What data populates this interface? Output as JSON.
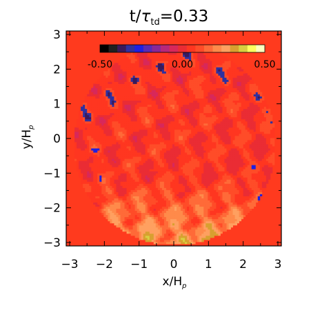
{
  "chart_data": {
    "type": "heatmap",
    "title": {
      "base": "t/",
      "symbol": "τ",
      "subscript": "td",
      "value_text": "=0.33"
    },
    "xlabel": {
      "base": "x/H",
      "subscript": "p"
    },
    "ylabel": {
      "base": "y/H",
      "subscript": "p"
    },
    "xlim": [
      -3.1,
      3.1
    ],
    "ylim": [
      -3.1,
      3.1
    ],
    "x_ticks": [
      -3,
      -2,
      -1,
      0,
      1,
      2,
      3
    ],
    "y_ticks": [
      -3,
      -2,
      -1,
      0,
      1,
      2,
      3
    ],
    "x_tick_labels": [
      "−3",
      "−2",
      "−1",
      "0",
      "1",
      "2",
      "3"
    ],
    "y_tick_labels": [
      "−3",
      "−2",
      "−1",
      "0",
      "1",
      "2",
      "3"
    ],
    "colorbar": {
      "min": -0.5,
      "max": 0.5,
      "tick_values": [
        -0.5,
        0.0,
        0.5
      ],
      "tick_labels": [
        "-0.50",
        "0.00",
        "0.50"
      ],
      "colors": [
        "#000000",
        "#202020",
        "#3a1a5a",
        "#3030a0",
        "#2020e0",
        "#5a2ab4",
        "#8a2896",
        "#b8287a",
        "#d8285a",
        "#ea2c34",
        "#ff3620",
        "#ff4c28",
        "#ff6a38",
        "#ff8a4a",
        "#ffa060",
        "#d8a030",
        "#d8d040",
        "#ffff60",
        "#ffffc0"
      ]
    },
    "field": {
      "background_color": "#ff3a1e",
      "disk_center": [
        0,
        -0.2
      ],
      "disk_radius": 2.9,
      "sampling_step": 0.06,
      "pattern": "turbulent cellular field inside the disk; negative (blue) filaments concentrated near the upper rim, strongest positive (yellow) values near the bottom"
    }
  }
}
